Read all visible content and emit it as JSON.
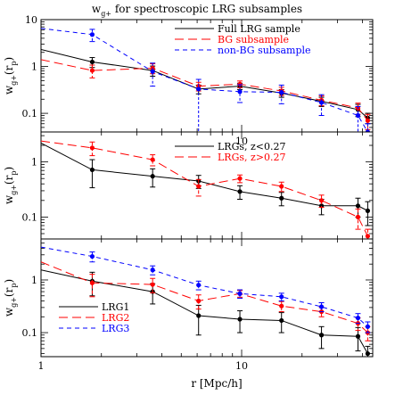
{
  "figure": {
    "title": "w",
    "title_sub": "g+",
    "title_rest": " for spectroscopic LRG subsamples",
    "xlabel": "r [Mpc/h]"
  },
  "chart_data": [
    {
      "type": "line",
      "xscale": "log",
      "yscale": "log",
      "xlim": [
        1,
        45
      ],
      "ylim": [
        0.04,
        10
      ],
      "ylabel_main": "w",
      "ylabel_sub": "g+",
      "ylabel_rest": "(r",
      "ylabel_sub2": "p",
      "ylabel_end": ")",
      "xticklabels": [],
      "yticks": [
        0.1,
        1,
        10
      ],
      "yticklabels": [
        "0.1",
        "1",
        "10"
      ],
      "mid_text": "",
      "legend_position": "top-right",
      "series": [
        {
          "name": "Full LRG sample",
          "color": "#000000",
          "dash": "solid",
          "x": [
            1.0,
            1.8,
            3.6,
            6.1,
            9.8,
            15.8,
            25.0,
            38.0,
            42.5
          ],
          "y": [
            2.3,
            1.25,
            0.82,
            0.33,
            0.38,
            0.27,
            0.18,
            0.12,
            0.08
          ],
          "err_lo": [
            null,
            0.3,
            0.2,
            0.07,
            0.06,
            0.05,
            0.04,
            0.035,
            0.02
          ],
          "err_hi": [
            null,
            0.3,
            0.2,
            0.07,
            0.06,
            0.05,
            0.04,
            0.035,
            0.02
          ]
        },
        {
          "name": "BG subsample",
          "color": "#ff0000",
          "dash": "long",
          "x": [
            1.0,
            1.8,
            3.6,
            6.1,
            9.8,
            15.8,
            25.0,
            38.0,
            42.5
          ],
          "y": [
            1.4,
            0.82,
            0.92,
            0.38,
            0.42,
            0.3,
            0.19,
            0.13,
            0.07
          ],
          "err_lo": [
            null,
            0.25,
            0.22,
            0.08,
            0.07,
            0.06,
            0.045,
            0.035,
            0.025
          ],
          "err_hi": [
            null,
            0.25,
            0.22,
            0.08,
            0.07,
            0.06,
            0.045,
            0.035,
            0.025
          ]
        },
        {
          "name": "non-BG subsample",
          "color": "#0000ff",
          "dash": "short",
          "x": [
            1.0,
            1.8,
            3.6,
            6.1,
            9.8,
            15.8,
            25.0,
            38.0,
            42.5
          ],
          "y": [
            6.5,
            4.8,
            0.78,
            0.33,
            0.29,
            0.28,
            0.17,
            0.09,
            0.04
          ],
          "err_lo": [
            null,
            1.4,
            0.4,
            0.3,
            0.12,
            0.12,
            0.08,
            0.05,
            0.02
          ],
          "err_hi": [
            null,
            1.4,
            0.4,
            0.2,
            0.12,
            0.12,
            0.08,
            0.05,
            0.02
          ]
        }
      ]
    },
    {
      "type": "line",
      "xscale": "log",
      "yscale": "log",
      "xlim": [
        1,
        45
      ],
      "ylim": [
        0.04,
        3.5
      ],
      "ylabel_main": "w",
      "ylabel_sub": "g+",
      "ylabel_rest": "(r",
      "ylabel_sub2": "p",
      "ylabel_end": ")",
      "xticklabels": [],
      "yticks": [
        0.1,
        1
      ],
      "yticklabels": [
        "0.1",
        "1"
      ],
      "mid_text": "10",
      "legend_position": "top-right",
      "series": [
        {
          "name": "LRGs, z<0.27",
          "color": "#000000",
          "dash": "solid",
          "x": [
            1.0,
            1.8,
            3.6,
            6.1,
            9.8,
            15.8,
            25.0,
            38.0,
            42.5
          ],
          "y": [
            2.2,
            0.72,
            0.55,
            0.45,
            0.29,
            0.22,
            0.16,
            0.16,
            0.13
          ],
          "err_lo": [
            null,
            0.38,
            0.2,
            0.12,
            0.08,
            0.06,
            0.05,
            0.06,
            0.06
          ],
          "err_hi": [
            null,
            0.38,
            0.2,
            0.12,
            0.08,
            0.06,
            0.05,
            0.06,
            0.06
          ]
        },
        {
          "name": "LRGs, z>0.27",
          "color": "#ff0000",
          "dash": "long",
          "x": [
            1.0,
            1.8,
            3.6,
            6.1,
            9.8,
            15.8,
            25.0,
            38.0,
            42.5
          ],
          "y": [
            2.4,
            1.8,
            1.1,
            0.36,
            0.5,
            0.36,
            0.2,
            0.1,
            0.045
          ],
          "err_lo": [
            null,
            0.5,
            0.25,
            0.12,
            0.08,
            0.07,
            0.05,
            0.04,
            0.015
          ],
          "err_hi": [
            null,
            0.5,
            0.25,
            0.12,
            0.08,
            0.07,
            0.05,
            0.04,
            0.015
          ]
        }
      ]
    },
    {
      "type": "line",
      "xscale": "log",
      "yscale": "log",
      "xlim": [
        1,
        45
      ],
      "ylim": [
        0.035,
        6
      ],
      "ylabel_main": "w",
      "ylabel_sub": "g+",
      "ylabel_rest": "(r",
      "ylabel_sub2": "p",
      "ylabel_end": ")",
      "xticklabels": [
        {
          "v": 1,
          "t": "1"
        },
        {
          "v": 10,
          "t": "10"
        }
      ],
      "yticks": [
        0.1,
        1
      ],
      "yticklabels": [
        "0.1",
        "1"
      ],
      "mid_text": "",
      "legend_position": "bottom-left",
      "series": [
        {
          "name": "LRG1",
          "color": "#000000",
          "dash": "solid",
          "x": [
            1.0,
            1.8,
            3.6,
            6.1,
            9.8,
            15.8,
            25.0,
            38.0,
            42.5
          ],
          "y": [
            1.55,
            0.95,
            0.6,
            0.21,
            0.18,
            0.17,
            0.09,
            0.085,
            0.04
          ],
          "err_lo": [
            null,
            0.45,
            0.25,
            0.12,
            0.08,
            0.07,
            0.04,
            0.04,
            0.015
          ],
          "err_hi": [
            null,
            0.45,
            0.25,
            0.12,
            0.08,
            0.07,
            0.04,
            0.04,
            0.015
          ]
        },
        {
          "name": "LRG2",
          "color": "#ff0000",
          "dash": "long",
          "x": [
            1.0,
            1.8,
            3.6,
            6.1,
            9.8,
            15.8,
            25.0,
            38.0,
            42.5
          ],
          "y": [
            2.2,
            0.88,
            0.82,
            0.4,
            0.55,
            0.32,
            0.25,
            0.15,
            0.1
          ],
          "err_lo": [
            null,
            0.4,
            0.25,
            0.12,
            0.08,
            0.07,
            0.05,
            0.04,
            0.03
          ],
          "err_hi": [
            null,
            0.4,
            0.25,
            0.12,
            0.08,
            0.07,
            0.05,
            0.04,
            0.03
          ]
        },
        {
          "name": "LRG3",
          "color": "#0000ff",
          "dash": "short",
          "x": [
            1.0,
            1.8,
            3.6,
            6.1,
            9.8,
            15.8,
            25.0,
            38.0,
            42.5
          ],
          "y": [
            4.2,
            2.8,
            1.55,
            0.8,
            0.55,
            0.48,
            0.31,
            0.19,
            0.13
          ],
          "err_lo": [
            null,
            0.6,
            0.3,
            0.15,
            0.1,
            0.08,
            0.06,
            0.04,
            0.03
          ],
          "err_hi": [
            null,
            0.6,
            0.3,
            0.15,
            0.1,
            0.08,
            0.06,
            0.04,
            0.03
          ]
        }
      ]
    }
  ]
}
